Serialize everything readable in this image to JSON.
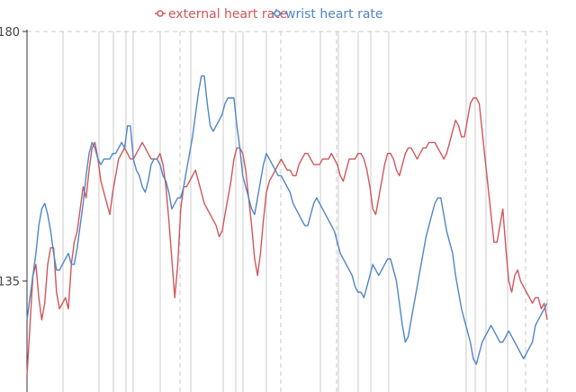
{
  "chart_data": {
    "type": "line",
    "title": "",
    "xlabel": "",
    "ylabel": "",
    "ylim": [
      115,
      180
    ],
    "yticks": [
      {
        "value": 180,
        "label": "180"
      },
      {
        "value": 135,
        "label": "135"
      }
    ],
    "grid": true,
    "legend_position": "top-center",
    "series": [
      {
        "name": "external heart rate",
        "color": "#d0575b",
        "values": [
          118,
          127,
          136,
          138,
          132,
          128,
          131,
          138,
          141,
          141,
          133,
          130,
          131,
          132,
          130,
          138,
          142,
          144,
          148,
          152,
          150,
          155,
          159,
          160,
          157,
          153,
          151,
          149,
          147,
          151,
          154,
          157,
          158,
          159,
          158,
          157,
          157,
          158,
          159,
          160,
          159,
          158,
          157,
          157,
          157,
          158,
          156,
          152,
          146,
          139,
          132,
          138,
          148,
          152,
          152,
          153,
          154,
          155,
          153,
          151,
          149,
          148,
          147,
          146,
          145,
          143,
          144,
          147,
          150,
          153,
          157,
          159,
          159,
          158,
          155,
          150,
          145,
          139,
          136,
          140,
          146,
          151,
          153,
          154,
          155,
          156,
          157,
          156,
          155,
          155,
          154,
          154,
          156,
          157,
          158,
          158,
          157,
          156,
          156,
          156,
          157,
          157,
          157,
          158,
          157,
          156,
          154,
          153,
          155,
          157,
          157,
          157,
          158,
          158,
          157,
          155,
          152,
          148,
          147,
          150,
          153,
          156,
          158,
          158,
          157,
          155,
          154,
          156,
          158,
          159,
          159,
          158,
          157,
          158,
          159,
          159,
          160,
          160,
          160,
          159,
          158,
          157,
          158,
          160,
          162,
          164,
          163,
          161,
          161,
          164,
          167,
          168,
          168,
          167,
          162,
          157,
          152,
          147,
          142,
          142,
          145,
          148,
          141,
          135,
          133,
          136,
          137,
          135,
          134,
          133,
          132,
          131,
          132,
          132,
          130,
          131,
          128
        ],
        "dip_value": 132
      },
      {
        "name": "wrist heart rate",
        "color": "#4f86c6",
        "values": [
          128,
          132,
          136,
          140,
          145,
          148,
          149,
          147,
          144,
          140,
          137,
          137,
          138,
          139,
          140,
          138,
          138,
          141,
          145,
          149,
          154,
          158,
          160,
          159,
          157,
          156,
          157,
          157,
          157,
          158,
          158,
          159,
          160,
          159,
          163,
          163,
          157,
          155,
          154,
          152,
          151,
          153,
          156,
          157,
          157,
          156,
          154,
          153,
          151,
          148,
          149,
          150,
          150,
          152,
          155,
          158,
          161,
          165,
          169,
          172,
          172,
          167,
          163,
          162,
          163,
          164,
          165,
          167,
          168,
          168,
          168,
          163,
          159,
          154,
          152,
          150,
          148,
          147,
          150,
          153,
          156,
          158,
          157,
          156,
          155,
          154,
          154,
          153,
          152,
          151,
          149,
          148,
          147,
          146,
          145,
          145,
          147,
          149,
          150,
          149,
          148,
          147,
          146,
          145,
          144,
          142,
          140,
          139,
          138,
          137,
          136,
          134,
          133,
          133,
          132,
          134,
          136,
          138,
          137,
          136,
          137,
          138,
          139,
          139,
          137,
          135,
          131,
          127,
          124,
          125,
          128,
          131,
          134,
          137,
          140,
          143,
          145,
          147,
          149,
          150,
          150,
          147,
          144,
          142,
          140,
          136,
          133,
          130,
          128,
          126,
          124,
          121,
          120,
          122,
          124,
          125,
          126,
          127,
          126,
          125,
          124,
          124,
          125,
          126,
          125,
          124,
          123,
          122,
          121,
          122,
          123,
          124,
          127,
          128,
          129,
          130,
          131
        ]
      }
    ]
  }
}
